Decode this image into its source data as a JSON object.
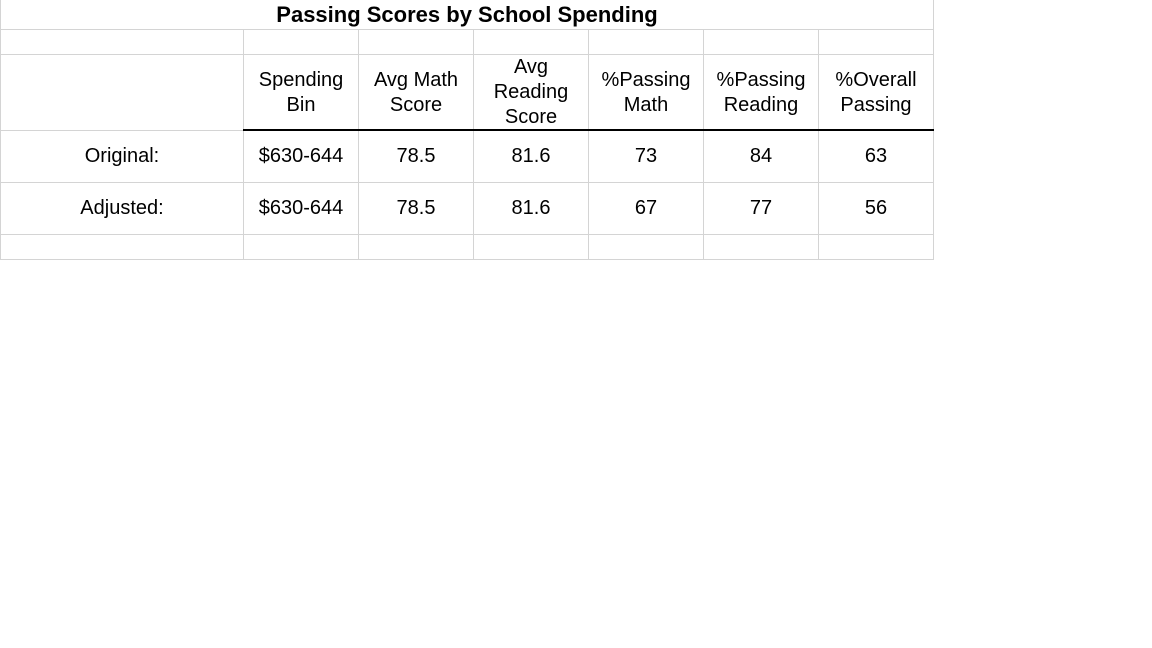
{
  "title": "Passing Scores by School Spending",
  "headers": [
    "Spending\nBin",
    "Avg Math\nScore",
    "Avg\nReading\nScore",
    "%Passing\nMath",
    "%Passing\nReading",
    "%Overall\nPassing"
  ],
  "rows": [
    {
      "label": "Original:",
      "values": [
        "$630-644",
        "78.5",
        "81.6",
        "73",
        "84",
        "63"
      ]
    },
    {
      "label": "Adjusted:",
      "values": [
        "$630-644",
        "78.5",
        "81.6",
        "67",
        "77",
        "56"
      ]
    }
  ]
}
